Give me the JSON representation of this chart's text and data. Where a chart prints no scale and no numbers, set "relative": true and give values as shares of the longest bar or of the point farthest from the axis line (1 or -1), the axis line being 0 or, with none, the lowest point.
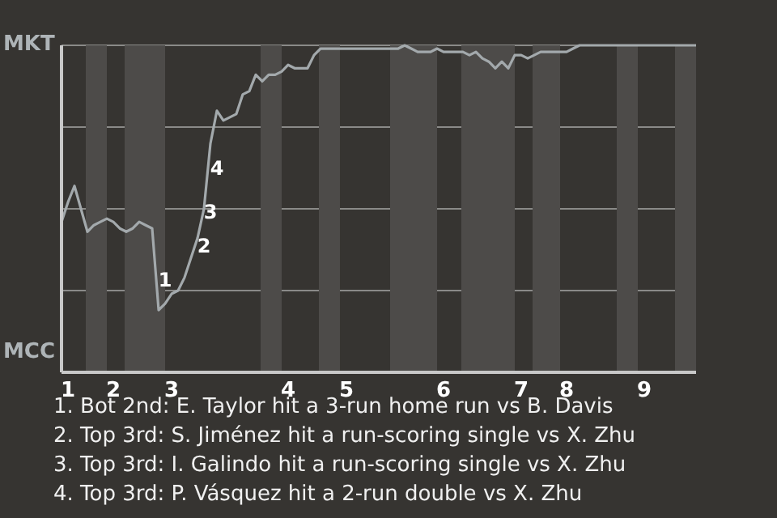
{
  "chart_data": {
    "type": "line",
    "relative": true,
    "grid": "y",
    "marker": "none",
    "line_style": "solid",
    "categories": [
      null,
      "1",
      null,
      null,
      null,
      null,
      null,
      null,
      "2",
      null,
      null,
      null,
      null,
      null,
      null,
      null,
      null,
      "3",
      null,
      null,
      null,
      null,
      null,
      null,
      null,
      null,
      null,
      null,
      null,
      null,
      null,
      null,
      null,
      null,
      null,
      "4",
      null,
      null,
      null,
      null,
      null,
      null,
      null,
      null,
      "5",
      null,
      null,
      null,
      null,
      null,
      null,
      null,
      null,
      null,
      null,
      null,
      null,
      null,
      null,
      "6",
      null,
      null,
      null,
      null,
      null,
      null,
      null,
      null,
      null,
      null,
      null,
      "7",
      null,
      null,
      null,
      null,
      null,
      null,
      "8",
      null,
      null,
      null,
      null,
      null,
      null,
      null,
      null,
      null,
      null,
      null,
      "9",
      null,
      null,
      null,
      null,
      null,
      null,
      null,
      null
    ],
    "series": [
      {
        "color": "#a3a9ac",
        "values": [
          0.46,
          0.52,
          0.57,
          0.5,
          0.43,
          0.45,
          0.46,
          0.47,
          0.46,
          0.44,
          0.43,
          0.44,
          0.46,
          0.45,
          0.44,
          0.19,
          0.21,
          0.24,
          0.25,
          0.29,
          0.35,
          0.41,
          0.5,
          0.7,
          0.8,
          0.77,
          0.78,
          0.79,
          0.85,
          0.86,
          0.91,
          0.89,
          0.91,
          0.91,
          0.92,
          0.94,
          0.93,
          0.93,
          0.93,
          0.97,
          0.99,
          0.99,
          0.99,
          0.99,
          0.99,
          0.99,
          0.99,
          0.99,
          0.99,
          0.99,
          0.99,
          0.99,
          0.99,
          1,
          0.99,
          0.98,
          0.98,
          0.98,
          0.99,
          0.98,
          0.98,
          0.98,
          0.98,
          0.97,
          0.98,
          0.96,
          0.95,
          0.93,
          0.95,
          0.93,
          0.97,
          0.97,
          0.96,
          0.97,
          0.98,
          0.98,
          0.98,
          0.98,
          0.98,
          0.99,
          1,
          1,
          1,
          1,
          1,
          1,
          1,
          1,
          1,
          1,
          1,
          1,
          1,
          1,
          1,
          1,
          1,
          1,
          1
        ]
      }
    ],
    "annotations": [
      "MKT",
      "MCC",
      "1",
      "2",
      "3",
      "4",
      "1. Bot 2nd: E. Taylor hit a 3-run home run vs B. Davis",
      "2. Top 3rd: S. Jiménez hit a run-scoring single vs X. Zhu",
      "3. Top 3rd: I. Galindo hit a run-scoring single vs X. Zhu",
      "4. Top 3rd: P. Vásquez hit a 2-run double vs X. Zhu"
    ]
  }
}
